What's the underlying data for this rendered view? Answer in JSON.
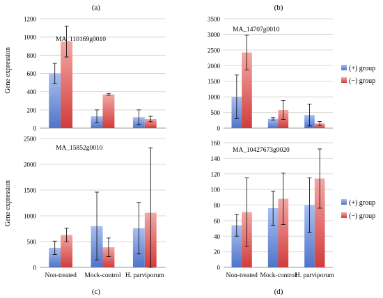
{
  "figure": {
    "ylabel": "Gene expression",
    "legend": [
      {
        "label": "(+) group",
        "color": "#6f8fd8"
      },
      {
        "label": "(−) group",
        "color": "#e06a6a"
      }
    ]
  },
  "chart_data": [
    {
      "panel_label": "(a)",
      "type": "bar",
      "title": "MA_110169g0010",
      "categories": [
        "Non-treated",
        "Mock-control",
        "H. parviporum"
      ],
      "series": [
        {
          "name": "(+) group",
          "values": [
            600,
            130,
            120
          ],
          "errors": [
            110,
            70,
            80
          ]
        },
        {
          "name": "(−) group",
          "values": [
            950,
            370,
            100
          ],
          "errors": [
            170,
            10,
            30
          ]
        }
      ],
      "ylim": [
        0,
        1200
      ],
      "yticks": [
        0,
        200,
        400,
        600,
        800,
        1000,
        1200
      ],
      "ylabel": "Gene expression",
      "legend": "none",
      "grid": "horizontal"
    },
    {
      "panel_label": "(b)",
      "type": "bar",
      "title": "MA_14707g0010",
      "categories": [
        "Non-treated",
        "Mock-control",
        "H. parviporum"
      ],
      "series": [
        {
          "name": "(+) group",
          "values": [
            1000,
            300,
            420
          ],
          "errors": [
            700,
            40,
            350
          ]
        },
        {
          "name": "(−) group",
          "values": [
            2420,
            580,
            150
          ],
          "errors": [
            560,
            300,
            60
          ]
        }
      ],
      "ylim": [
        0,
        3500
      ],
      "yticks": [
        0,
        500,
        1000,
        1500,
        2000,
        2500,
        3000,
        3500
      ],
      "legend": "right",
      "grid": "horizontal"
    },
    {
      "panel_label": "(c)",
      "type": "bar",
      "title": "MA_15852g0010",
      "categories": [
        "Non-treated",
        "Mock-control",
        "H. parviporum"
      ],
      "series": [
        {
          "name": "(+) group",
          "values": [
            380,
            800,
            760
          ],
          "errors": [
            130,
            660,
            500
          ]
        },
        {
          "name": "(−) group",
          "values": [
            630,
            390,
            1060
          ],
          "errors": [
            130,
            180,
            1260
          ]
        }
      ],
      "ylim": [
        0,
        2500
      ],
      "yticks": [
        0,
        500,
        1000,
        1500,
        2000,
        2500
      ],
      "ylabel": "Gene expression",
      "legend": "none",
      "grid": "horizontal"
    },
    {
      "panel_label": "(d)",
      "type": "bar",
      "title": "MA_10427673g0020",
      "categories": [
        "Non-treated",
        "Mock-control",
        "H. parviporum"
      ],
      "series": [
        {
          "name": "(+) group",
          "values": [
            54,
            76,
            80
          ],
          "errors": [
            14,
            22,
            35
          ]
        },
        {
          "name": "(−) group",
          "values": [
            71,
            88,
            114
          ],
          "errors": [
            44,
            33,
            38
          ]
        }
      ],
      "ylim": [
        0,
        160
      ],
      "yticks": [
        0,
        20,
        40,
        60,
        80,
        100,
        120,
        140,
        160
      ],
      "legend": "right",
      "grid": "horizontal"
    }
  ]
}
